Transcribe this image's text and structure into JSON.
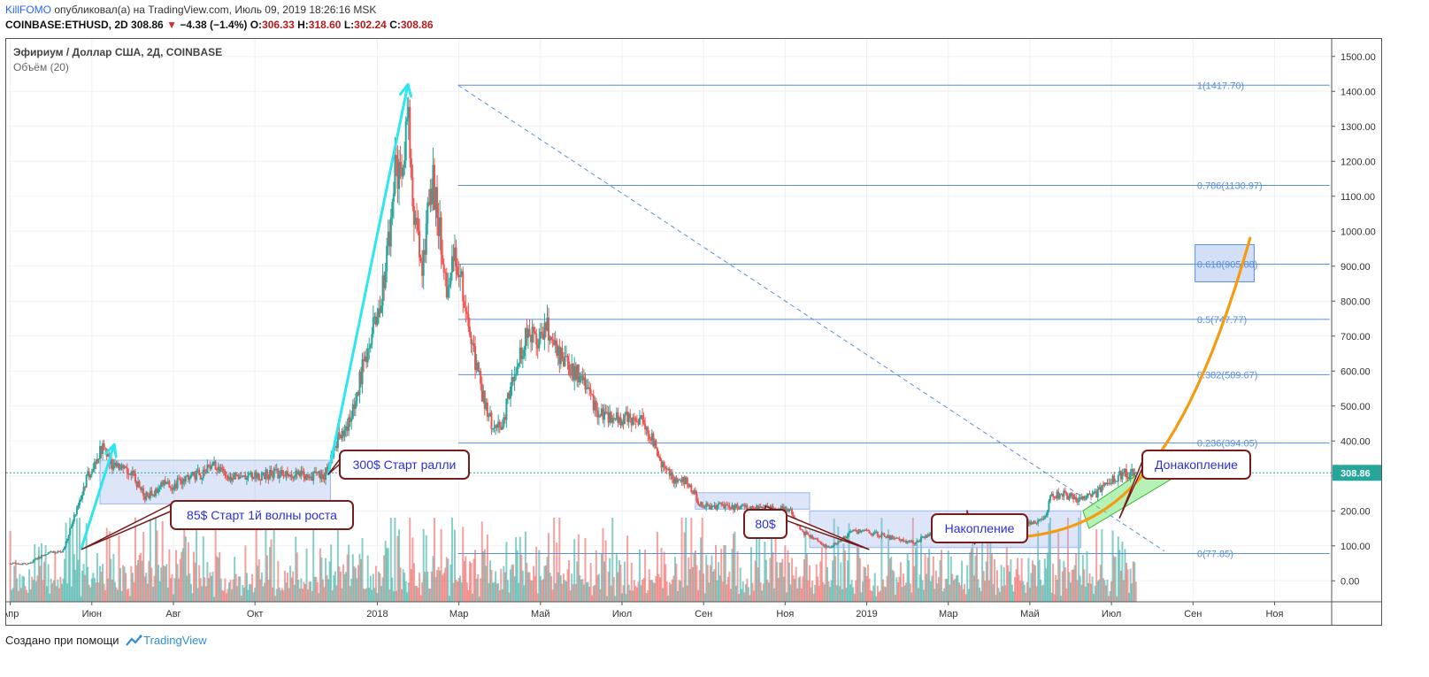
{
  "header": {
    "author": "KillFOMO",
    "published_text": "опубликовал(а) на TradingView.com, Июль 09, 2019 18:26:16 MSK",
    "symbol": "COINBASE:ETHUSD, 2D",
    "last": "308.86",
    "change_arrow": "▼",
    "change": "−4.38 (−1.4%)",
    "o_label": "O:",
    "o": "306.33",
    "h_label": "H:",
    "h": "318.60",
    "l_label": "L:",
    "l": "302.24",
    "c_label": "C:",
    "c": "308.86"
  },
  "legend": {
    "title": "Эфириум / Доллар США, 2Д, COINBASE",
    "volume": "Объём (20)"
  },
  "footer": {
    "created_with": "Создано при помощи",
    "brand": "TradingView"
  },
  "colors": {
    "up": "#26a69a",
    "down": "#ef5350",
    "fib": "#5b8fd8",
    "zone": "#9bb7ec",
    "arrow": "#2ee6f0",
    "curve": "#f39c12",
    "callout": "#7a1b1b",
    "callout_text": "#2b2fd6",
    "price_tag": "#26a69a"
  },
  "chart_data": {
    "type": "candlestick",
    "symbol": "COINBASE:ETHUSD",
    "interval": "2D",
    "ylim": [
      -60,
      1550
    ],
    "y_ticks": [
      0,
      100,
      200,
      300,
      400,
      500,
      600,
      700,
      800,
      900,
      1000,
      1100,
      1200,
      1300,
      1400,
      1500
    ],
    "y_tick_labels": [
      "0.00",
      "100.00",
      "200.00",
      "300.00",
      "400.00",
      "500.00",
      "600.00",
      "700.00",
      "800.00",
      "900.00",
      "1000.00",
      "1100.00",
      "1200.00",
      "1300.00",
      "1400.00",
      "1500.00"
    ],
    "x_ticks": [
      {
        "t": 0,
        "label": "Апр"
      },
      {
        "t": 2,
        "label": "Июн"
      },
      {
        "t": 4,
        "label": "Авг"
      },
      {
        "t": 6,
        "label": "Окт"
      },
      {
        "t": 9,
        "label": "2018"
      },
      {
        "t": 11,
        "label": "Мар"
      },
      {
        "t": 13,
        "label": "Май"
      },
      {
        "t": 15,
        "label": "Июл"
      },
      {
        "t": 17,
        "label": "Сен"
      },
      {
        "t": 19,
        "label": "Ноя"
      },
      {
        "t": 21,
        "label": "2019"
      },
      {
        "t": 23,
        "label": "Мар"
      },
      {
        "t": 25,
        "label": "Май"
      },
      {
        "t": 27,
        "label": "Июл"
      },
      {
        "t": 29,
        "label": "Сен"
      },
      {
        "t": 31,
        "label": "Ноя"
      }
    ],
    "x_range": [
      -0.1,
      32.4
    ],
    "close_path": [
      [
        0,
        50
      ],
      [
        0.45,
        48
      ],
      [
        0.9,
        80
      ],
      [
        1.3,
        85
      ],
      [
        1.6,
        200
      ],
      [
        1.9,
        300
      ],
      [
        2.25,
        380
      ],
      [
        2.45,
        335
      ],
      [
        2.7,
        320
      ],
      [
        3.0,
        300
      ],
      [
        3.3,
        240
      ],
      [
        3.5,
        250
      ],
      [
        3.8,
        280
      ],
      [
        4.0,
        270
      ],
      [
        4.3,
        300
      ],
      [
        4.7,
        305
      ],
      [
        5.0,
        340
      ],
      [
        5.2,
        310
      ],
      [
        5.4,
        300
      ],
      [
        5.8,
        300
      ],
      [
        6.1,
        300
      ],
      [
        6.5,
        310
      ],
      [
        6.8,
        300
      ],
      [
        7.3,
        300
      ],
      [
        7.7,
        300
      ],
      [
        8.0,
        400
      ],
      [
        8.35,
        460
      ],
      [
        8.7,
        640
      ],
      [
        9.1,
        800
      ],
      [
        9.3,
        1000
      ],
      [
        9.45,
        1200
      ],
      [
        9.6,
        1120
      ],
      [
        9.75,
        1350
      ],
      [
        9.9,
        1050
      ],
      [
        10.1,
        900
      ],
      [
        10.35,
        1150
      ],
      [
        10.5,
        1020
      ],
      [
        10.7,
        850
      ],
      [
        10.9,
        930
      ],
      [
        11.05,
        870
      ],
      [
        11.3,
        680
      ],
      [
        11.6,
        520
      ],
      [
        11.85,
        440
      ],
      [
        12.05,
        440
      ],
      [
        12.35,
        600
      ],
      [
        12.65,
        700
      ],
      [
        12.9,
        690
      ],
      [
        13.15,
        740
      ],
      [
        13.35,
        670
      ],
      [
        13.65,
        620
      ],
      [
        13.9,
        590
      ],
      [
        14.25,
        515
      ],
      [
        14.6,
        460
      ],
      [
        14.85,
        460
      ],
      [
        15.2,
        465
      ],
      [
        15.45,
        465
      ],
      [
        15.7,
        420
      ],
      [
        16.0,
        330
      ],
      [
        16.3,
        285
      ],
      [
        16.6,
        285
      ],
      [
        16.9,
        220
      ],
      [
        17.2,
        210
      ],
      [
        17.5,
        215
      ],
      [
        17.9,
        210
      ],
      [
        18.3,
        205
      ],
      [
        18.7,
        205
      ],
      [
        19.1,
        205
      ],
      [
        19.4,
        140
      ],
      [
        19.75,
        120
      ],
      [
        20.05,
        93
      ],
      [
        20.3,
        110
      ],
      [
        20.6,
        140
      ],
      [
        21.0,
        140
      ],
      [
        21.4,
        130
      ],
      [
        21.8,
        115
      ],
      [
        22.2,
        110
      ],
      [
        22.6,
        140
      ],
      [
        23.0,
        133
      ],
      [
        23.5,
        140
      ],
      [
        24.0,
        160
      ],
      [
        24.4,
        165
      ],
      [
        24.8,
        158
      ],
      [
        25.1,
        165
      ],
      [
        25.35,
        175
      ],
      [
        25.5,
        240
      ],
      [
        25.8,
        250
      ],
      [
        26.1,
        235
      ],
      [
        26.5,
        240
      ],
      [
        26.8,
        265
      ],
      [
        27.15,
        300
      ],
      [
        27.35,
        305
      ],
      [
        27.6,
        308.86
      ]
    ],
    "volume_scale_max": 100,
    "fibonacci": {
      "x_start": 10.98,
      "x_end": 32.35,
      "levels": [
        {
          "ratio": "1",
          "price": 1417.7,
          "label": "1(1417.70)"
        },
        {
          "ratio": "0.786",
          "price": 1130.97,
          "label": "0.786(1130.97)"
        },
        {
          "ratio": "0.618",
          "price": 905.88,
          "label": "0.618(905.88)"
        },
        {
          "ratio": "0.5",
          "price": 747.77,
          "label": "0.5(747.77)"
        },
        {
          "ratio": "0.382",
          "price": 589.67,
          "label": "0.382(589.67)"
        },
        {
          "ratio": "0.236",
          "price": 394.05,
          "label": "0.236(394.05)"
        },
        {
          "ratio": "0",
          "price": 77.85,
          "label": "0(77.85)"
        }
      ],
      "highlighted": "0.618"
    },
    "current_price": 308.86,
    "current_price_label": "308.86",
    "zones": [
      {
        "t0": 2.2,
        "t1": 7.85,
        "p_low": 220,
        "p_high": 345,
        "style": "zone"
      },
      {
        "t0": 16.8,
        "t1": 19.6,
        "p_low": 205,
        "p_high": 252,
        "style": "zone"
      },
      {
        "t0": 19.6,
        "t1": 26.25,
        "p_low": 95,
        "p_high": 200,
        "style": "zone"
      }
    ],
    "arrows": [
      {
        "t0": 1.75,
        "p0": 95,
        "t1": 2.55,
        "p1": 390
      },
      {
        "t0": 7.8,
        "p0": 305,
        "t1": 9.75,
        "p1": 1420
      }
    ],
    "trend_line": {
      "t0": 10.98,
      "p0": 1417.7,
      "t1": 28.3,
      "p1": 85
    },
    "accumulation_curve": {
      "start_t": 23.05,
      "start_p": 120,
      "end_t": 30.4,
      "end_p": 980,
      "exponent": 3.5
    },
    "channel": {
      "points": [
        [
          26.3,
          200
        ],
        [
          28.35,
          360
        ],
        [
          28.6,
          300
        ],
        [
          26.45,
          150
        ]
      ]
    },
    "annotations": [
      {
        "text": "85$ Старт 1й волны роста",
        "anchor_t": 1.75,
        "anchor_p": 90
      },
      {
        "text": "300$ Старт ралли",
        "anchor_t": 7.8,
        "anchor_p": 305
      },
      {
        "text": "80$",
        "anchor_t": 21.05,
        "anchor_p": 90
      },
      {
        "text": "Накопление",
        "anchor_t": 23.65,
        "anchor_p": 105
      },
      {
        "text": "Донакопление",
        "anchor_t": 27.2,
        "anchor_p": 180
      }
    ]
  }
}
